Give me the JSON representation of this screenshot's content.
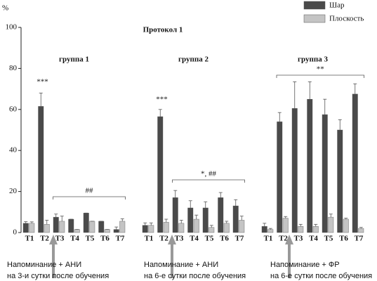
{
  "chart_data": {
    "type": "bar",
    "title": "Протокол 1",
    "y_label": "%",
    "ylim": [
      0,
      100
    ],
    "yticks": [
      0,
      20,
      40,
      60,
      80,
      100
    ],
    "legend": "top right",
    "series": [
      {
        "name": "Шар",
        "color": "#4a4a4a"
      },
      {
        "name": "Плоскость",
        "color": "#c4c4c4"
      }
    ],
    "groups": [
      {
        "label": "группа 1",
        "categories": [
          "T1",
          "T2",
          "T3",
          "T4",
          "T5",
          "T6",
          "T7"
        ],
        "values": [
          [
            4.5,
            61.5,
            7.5,
            6.5,
            9.5,
            5.5,
            1.5
          ],
          [
            4.5,
            4,
            5.5,
            1.5,
            5.5,
            1.5,
            5.5
          ]
        ],
        "errors": [
          [
            0.8,
            6.5,
            1.5,
            0,
            0,
            0,
            1.2
          ],
          [
            0.7,
            2,
            2.5,
            0,
            0,
            0,
            1.2
          ]
        ],
        "star_label": "***",
        "bracket_label": "##",
        "note": [
          "Напоминание + АНИ",
          "на 3-и сутки после обучения"
        ]
      },
      {
        "label": "группа 2",
        "categories": [
          "T1",
          "T2",
          "T3",
          "T4",
          "T5",
          "T6",
          "T7"
        ],
        "values": [
          [
            3.5,
            56.5,
            17,
            12,
            12,
            17,
            13
          ],
          [
            3.5,
            5,
            4.5,
            6.5,
            2.5,
            4.5,
            6
          ]
        ],
        "errors": [
          [
            1.2,
            3.5,
            3.5,
            3.5,
            3,
            2.5,
            3
          ],
          [
            1.2,
            1.5,
            1.5,
            2,
            1,
            1,
            2
          ]
        ],
        "star_label": "***",
        "bracket_label": "*, ##",
        "note": [
          "Напоминание + АНИ",
          "на 6-е сутки после обучения"
        ]
      },
      {
        "label": "группа 3",
        "categories": [
          "T1",
          "T2",
          "T3",
          "T4",
          "T5",
          "T6",
          "T7"
        ],
        "values": [
          [
            3,
            54,
            60.5,
            65,
            57.5,
            50,
            67.5
          ],
          [
            1.5,
            7,
            3,
            3,
            7.5,
            6.5,
            2
          ]
        ],
        "errors": [
          [
            1.5,
            4.5,
            13,
            8.5,
            7.5,
            5,
            5
          ],
          [
            0.5,
            0.8,
            1,
            1,
            1.5,
            0.5,
            0.5
          ]
        ],
        "bracket_label": "**",
        "note": [
          "Напоминание + ФР",
          "на 6-е сутки после обучения"
        ]
      }
    ]
  }
}
